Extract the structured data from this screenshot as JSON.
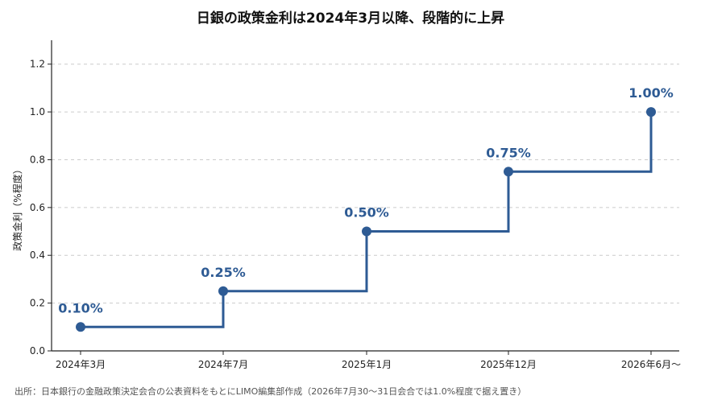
{
  "chart_data": {
    "type": "line",
    "step": "post",
    "title": "日銀の政策金利は2024年3月以降、段階的に上昇",
    "xlabel": "",
    "ylabel": "政策金利（%程度）",
    "categories": [
      "2024年3月",
      "2024年7月",
      "2025年1月",
      "2025年12月",
      "2026年6月〜"
    ],
    "series": [
      {
        "values": [
          0.1,
          0.25,
          0.5,
          0.75,
          1.0
        ],
        "labels": [
          "0.10%",
          "0.25%",
          "0.50%",
          "0.75%",
          "1.00%"
        ]
      }
    ],
    "ylim": [
      0,
      1.3
    ],
    "yticks": [
      "0.0",
      "0.2",
      "0.4",
      "0.6",
      "0.8",
      "1.0",
      "1.2"
    ],
    "grid": true,
    "legend": "none",
    "colors": {
      "series": "#2e5b94",
      "grid": "#cccccc",
      "axis": "#222222"
    }
  },
  "source": "出所：日本銀行の金融政策決定会合の公表資料をもとにLIMO編集部作成（2026年7月30〜31日会合では1.0%程度で据え置き）"
}
